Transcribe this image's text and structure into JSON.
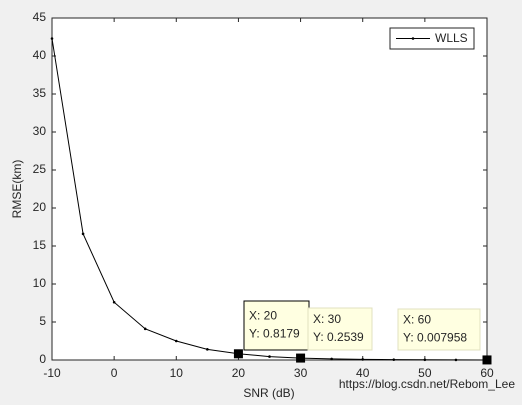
{
  "chart_data": {
    "type": "line",
    "xlabel": "SNR (dB)",
    "ylabel": "RMSE(km)",
    "x": [
      -10,
      -5,
      0,
      5,
      10,
      15,
      20,
      25,
      30,
      35,
      40,
      45,
      50,
      55,
      60
    ],
    "series": [
      {
        "name": "WLLS",
        "color": "#000000",
        "values": [
          42.3,
          16.6,
          7.6,
          4.1,
          2.5,
          1.4,
          0.8179,
          0.45,
          0.2539,
          0.14,
          0.08,
          0.045,
          0.025,
          0.014,
          0.007958
        ]
      }
    ],
    "xlim": [
      -10,
      60
    ],
    "xticks": [
      -10,
      0,
      10,
      20,
      30,
      40,
      50,
      60
    ],
    "ylim": [
      0,
      45
    ],
    "yticks": [
      0,
      5,
      10,
      15,
      20,
      25,
      30,
      35,
      40,
      45
    ],
    "legend": "upper right",
    "annotations": [
      {
        "x": 20,
        "y": 0.8179,
        "x_text": "X: 20",
        "y_text": "Y: 0.8179"
      },
      {
        "x": 30,
        "y": 0.2539,
        "x_text": "X: 30",
        "y_text": "Y: 0.2539"
      },
      {
        "x": 60,
        "y": 0.007958,
        "x_text": "X: 60",
        "y_text": "Y: 0.007958"
      }
    ],
    "watermark": "https://blog.csdn.net/Rebom_Lee"
  }
}
